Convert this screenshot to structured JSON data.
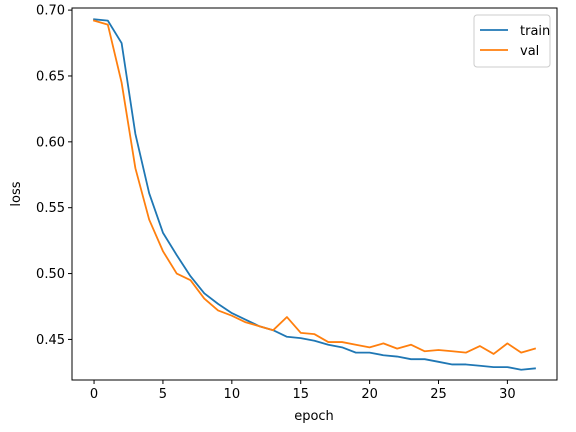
{
  "chart_data": {
    "type": "line",
    "xlabel": "epoch",
    "ylabel": "loss",
    "xlim": [
      -1.6,
      33.6
    ],
    "ylim": [
      0.4192,
      0.7016
    ],
    "xticks": [
      0,
      5,
      10,
      15,
      20,
      25,
      30
    ],
    "yticks": [
      0.45,
      0.5,
      0.55,
      0.6,
      0.65,
      0.7
    ],
    "ytick_labels": [
      "0.45",
      "0.50",
      "0.55",
      "0.60",
      "0.65",
      "0.70"
    ],
    "grid": false,
    "legend_position": "top-right",
    "series": [
      {
        "name": "train",
        "color": "#1f77b4",
        "x": [
          0,
          1,
          2,
          3,
          4,
          5,
          6,
          7,
          8,
          9,
          10,
          11,
          12,
          13,
          14,
          15,
          16,
          17,
          18,
          19,
          20,
          21,
          22,
          23,
          24,
          25,
          26,
          27,
          28,
          29,
          30,
          31,
          32
        ],
        "y": [
          0.693,
          0.692,
          0.675,
          0.606,
          0.561,
          0.531,
          0.514,
          0.498,
          0.485,
          0.477,
          0.47,
          0.465,
          0.46,
          0.457,
          0.452,
          0.451,
          0.449,
          0.446,
          0.444,
          0.44,
          0.44,
          0.438,
          0.437,
          0.435,
          0.435,
          0.433,
          0.431,
          0.431,
          0.43,
          0.429,
          0.429,
          0.427,
          0.428
        ]
      },
      {
        "name": "val",
        "color": "#ff7f0e",
        "x": [
          0,
          1,
          2,
          3,
          4,
          5,
          6,
          7,
          8,
          9,
          10,
          11,
          12,
          13,
          14,
          15,
          16,
          17,
          18,
          19,
          20,
          21,
          22,
          23,
          24,
          25,
          26,
          27,
          28,
          29,
          30,
          31,
          32
        ],
        "y": [
          0.692,
          0.689,
          0.645,
          0.58,
          0.541,
          0.517,
          0.5,
          0.495,
          0.481,
          0.472,
          0.468,
          0.463,
          0.46,
          0.457,
          0.467,
          0.455,
          0.454,
          0.448,
          0.448,
          0.446,
          0.444,
          0.447,
          0.443,
          0.446,
          0.441,
          0.442,
          0.441,
          0.44,
          0.445,
          0.439,
          0.447,
          0.44,
          0.443
        ]
      }
    ]
  }
}
